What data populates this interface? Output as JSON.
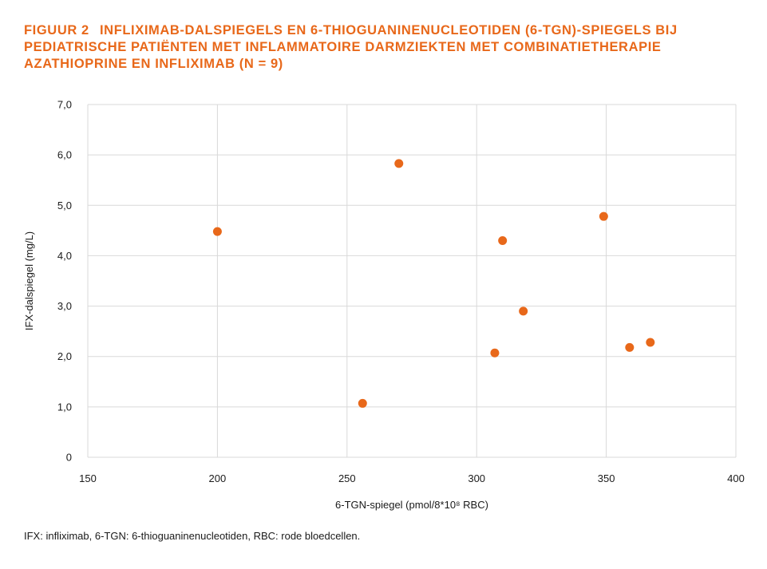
{
  "figure": {
    "label": "Figuur 2",
    "title": "Infliximab-dalspiegels en 6-thioguaninenucleotiden (6-TGN)-spiegels bij pediatrische patiënten met inflammatoire darmziekten met combinatietherapie azathioprine en infliximab (n = 9)",
    "footnote": "IFX: infliximab, 6-TGN: 6-thioguaninenucleotiden, RBC: rode bloedcellen."
  },
  "chart_data": {
    "type": "scatter",
    "xlabel": "6-TGN-spiegel (pmol/8*10⁸ RBC)",
    "ylabel": "IFX-dalspiegel (mg/L)",
    "xlim": [
      150,
      400
    ],
    "ylim": [
      0,
      7
    ],
    "xticks": [
      150,
      200,
      250,
      300,
      350,
      400
    ],
    "xtick_labels": [
      "150",
      "200",
      "250",
      "300",
      "350",
      "400"
    ],
    "yticks": [
      0,
      1,
      2,
      3,
      4,
      5,
      6,
      7
    ],
    "ytick_labels": [
      "0",
      "1,0",
      "2,0",
      "3,0",
      "4,0",
      "5,0",
      "6,0",
      "7,0"
    ],
    "grid": true,
    "marker_color": "#e8681a",
    "series": [
      {
        "points": [
          {
            "x": 200,
            "y": 4.48
          },
          {
            "x": 256,
            "y": 1.07
          },
          {
            "x": 270,
            "y": 5.83
          },
          {
            "x": 307,
            "y": 2.07
          },
          {
            "x": 310,
            "y": 4.3
          },
          {
            "x": 318,
            "y": 2.9
          },
          {
            "x": 349,
            "y": 4.78
          },
          {
            "x": 359,
            "y": 2.18
          },
          {
            "x": 367,
            "y": 2.28
          }
        ]
      }
    ]
  }
}
